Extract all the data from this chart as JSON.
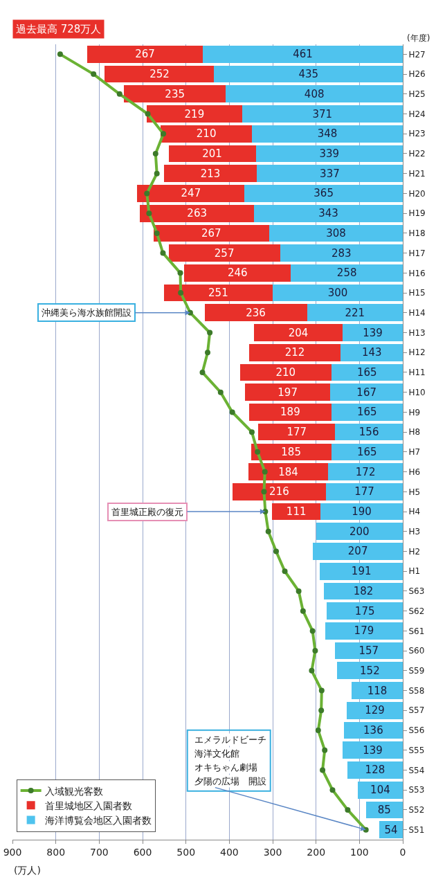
{
  "chart_data": {
    "type": "bar",
    "orientation": "horizontal",
    "stacked": true,
    "categories": [
      "H27",
      "H26",
      "H25",
      "H24",
      "H23",
      "H22",
      "H21",
      "H20",
      "H19",
      "H18",
      "H17",
      "H16",
      "H15",
      "H14",
      "H13",
      "H12",
      "H11",
      "H10",
      "H9",
      "H8",
      "H7",
      "H6",
      "H5",
      "H4",
      "H3",
      "H2",
      "H1",
      "S63",
      "S62",
      "S61",
      "S60",
      "S59",
      "S58",
      "S57",
      "S56",
      "S55",
      "S54",
      "S53",
      "S52",
      "S51"
    ],
    "series": [
      {
        "name": "海洋博覧会地区入園者数",
        "color": "#4fc3ee",
        "values": [
          461,
          435,
          408,
          371,
          348,
          339,
          337,
          365,
          343,
          308,
          283,
          258,
          300,
          221,
          139,
          143,
          165,
          167,
          165,
          156,
          165,
          172,
          177,
          190,
          200,
          207,
          191,
          182,
          175,
          179,
          157,
          152,
          118,
          129,
          136,
          139,
          128,
          104,
          85,
          54
        ],
        "value_labels": [
          "461",
          "435",
          "408",
          "371",
          "348",
          "339",
          "337",
          "365",
          "343",
          "308",
          "283",
          "258",
          "300",
          "221",
          "139",
          "143",
          "165",
          "167",
          "165",
          "156",
          "165",
          "172",
          "177",
          "190",
          "200",
          "207",
          "191",
          "182",
          "175",
          "179",
          "157",
          "152",
          "118",
          "129",
          "136",
          "139",
          "128",
          "104",
          "85",
          "54"
        ]
      },
      {
        "name": "首里城地区入園者数",
        "color": "#e8302a",
        "values": [
          267,
          252,
          235,
          219,
          210,
          201,
          213,
          247,
          263,
          267,
          257,
          246,
          251,
          236,
          204,
          212,
          210,
          197,
          189,
          177,
          185,
          184,
          216,
          111,
          null,
          null,
          null,
          null,
          null,
          null,
          null,
          null,
          null,
          null,
          null,
          null,
          null,
          null,
          null,
          null
        ],
        "value_labels": [
          "267",
          "252",
          "235",
          "219",
          "210",
          "201",
          "213",
          "247",
          "263",
          "267",
          "257",
          "246",
          "251",
          "236",
          "204",
          "212",
          "210",
          "197",
          "189",
          "177",
          "185",
          "184",
          "216",
          "111",
          null,
          null,
          null,
          null,
          null,
          null,
          null,
          null,
          null,
          null,
          null,
          null,
          null,
          null,
          null,
          null
        ]
      },
      {
        "name": "入域観光客数",
        "type": "line",
        "color": "#6bb234",
        "values": [
          790,
          713,
          653,
          588,
          552,
          570,
          567,
          590,
          585,
          567,
          553,
          513,
          512,
          490,
          445,
          450,
          462,
          420,
          393,
          348,
          335,
          318,
          320,
          317,
          310,
          292,
          272,
          240,
          230,
          208,
          202,
          210,
          187,
          188,
          195,
          180,
          185,
          162,
          127,
          85
        ]
      }
    ],
    "xlim": [
      900,
      0
    ],
    "xticks": [
      0,
      100,
      200,
      300,
      400,
      500,
      600,
      700,
      800,
      900
    ],
    "xlabel": "(万人)",
    "ylabel": "(年度)",
    "grid": "x",
    "legend": "bottom left",
    "marker": "circle",
    "annotations": [
      {
        "text": "沖縄美ら海水族館開設",
        "x": 490,
        "y": "H14"
      },
      {
        "text": "首里城正殿の復元",
        "x": 317,
        "y": "H4"
      },
      "エメラルドビーチ",
      "海洋文化館",
      "オキちゃん劇場",
      {
        "text": "夕陽の広場　開設",
        "x": 85,
        "y": "S51"
      },
      "過去最高 728万人"
    ]
  }
}
